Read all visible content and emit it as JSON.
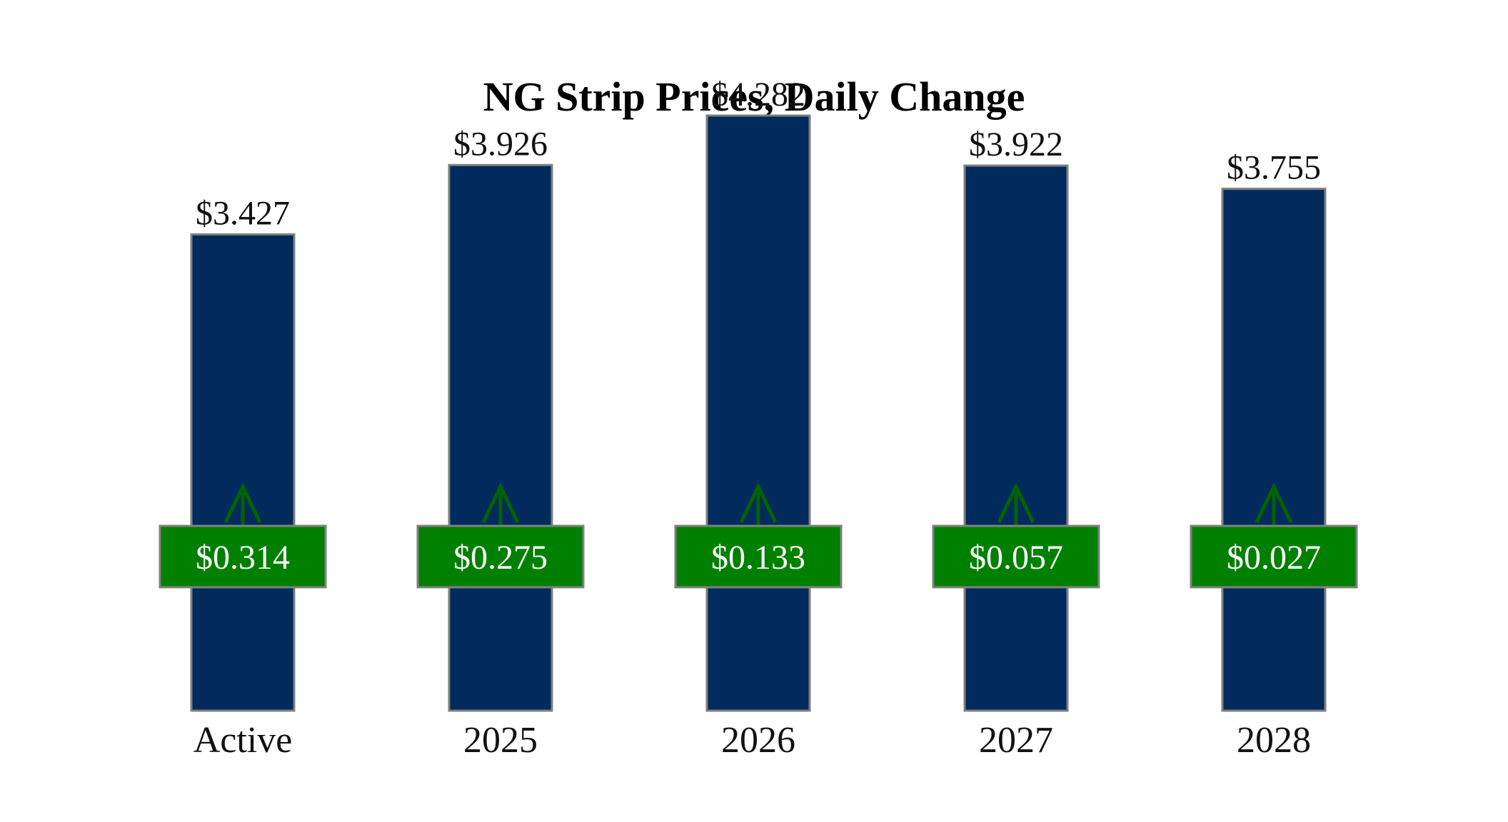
{
  "chart_data": {
    "type": "bar",
    "title": "NG Strip Prices, Daily Change",
    "xlabel": "",
    "ylabel": "",
    "categories": [
      "Active",
      "2025",
      "2026",
      "2027",
      "2028"
    ],
    "values": [
      3.427,
      3.926,
      4.282,
      3.922,
      3.755
    ],
    "value_labels": [
      "$3.427",
      "$3.926",
      "$4.282",
      "$3.922",
      "$3.755"
    ],
    "changes": [
      0.314,
      0.275,
      0.133,
      0.057,
      0.027
    ],
    "change_labels": [
      "$0.314",
      "$0.275",
      "$0.133",
      "$0.057",
      "$0.027"
    ],
    "change_direction": [
      "up",
      "up",
      "up",
      "up",
      "up"
    ],
    "ylim": [
      0,
      4.6
    ],
    "grid": false,
    "legend": "none",
    "colors": {
      "bar": "#002b5c",
      "bar_border": "#808080",
      "change_box": "#008000",
      "change_box_border": "#808080",
      "arrow": "#006400"
    },
    "icons": {
      "change_indicator": "up-arrow-icon"
    }
  }
}
